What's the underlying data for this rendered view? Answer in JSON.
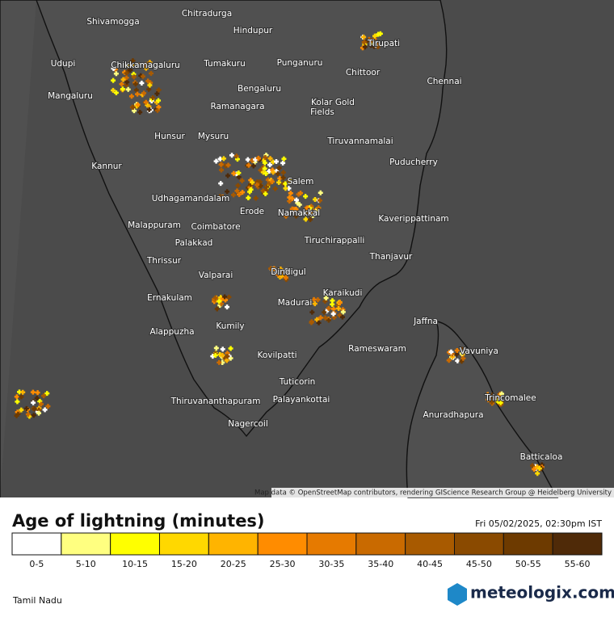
{
  "map": {
    "labels": [
      "Shivamogga",
      "Chitradurga",
      "Hindupur",
      "Tirupati",
      "Udupi",
      "Chikkamagaluru",
      "Tumakuru",
      "Punganuru",
      "Chittoor",
      "Chennai",
      "Mangaluru",
      "Bengaluru",
      "Ramanagara",
      "Kolar Gold",
      "Fields",
      "Hunsur",
      "Mysuru",
      "Tiruvannamalai",
      "Kannur",
      "Puducherry",
      "Udhagamandalam",
      "Salem",
      "Erode",
      "Namakkal",
      "Kaverippattinam",
      "Malappuram",
      "Coimbatore",
      "Palakkad",
      "Tiruchirappalli",
      "Thrissur",
      "Thanjavur",
      "Valparai",
      "Dindigul",
      "Ernakulam",
      "Madurai",
      "Karaikudi",
      "Alappuzha",
      "Kumily",
      "Jaffna",
      "Rameswaram",
      "Vavuniya",
      "Kovilpatti",
      "Trincomalee",
      "Tuticorin",
      "Palayankottai",
      "Thiruvananthapuram",
      "Anuradhapura",
      "Nagercoil",
      "Batticaloa"
    ],
    "attribution": "Map data © OpenStreetMap contributors, rendering GIScience Research Group @ Heidelberg University"
  },
  "legend": {
    "title": "Age of lightning (minutes)",
    "timestamp": "Fri 05/02/2025, 02:30pm IST",
    "bins": [
      "0-5",
      "5-10",
      "10-15",
      "15-20",
      "20-25",
      "25-30",
      "30-35",
      "35-40",
      "40-45",
      "45-50",
      "50-55",
      "55-60"
    ],
    "colors": [
      "#ffffff",
      "#ffff80",
      "#ffff00",
      "#ffd800",
      "#ffb400",
      "#ff8c00",
      "#e67a00",
      "#c96a00",
      "#a85a00",
      "#8a4a00",
      "#6d3a00",
      "#4f2a08"
    ]
  },
  "footer": {
    "region": "Tamil Nadu",
    "brand": "meteologix.com"
  }
}
